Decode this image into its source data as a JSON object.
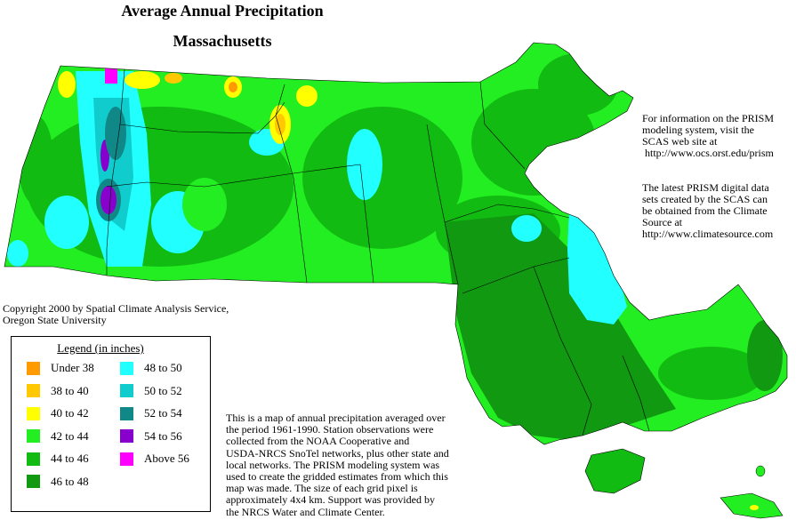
{
  "title": "Average Annual Precipitation",
  "subtitle": "Massachusetts",
  "copyright": [
    "Copyright 2000 by Spatial Climate Analysis Service,",
    "Oregon State University"
  ],
  "info_prism": [
    "For information on the PRISM",
    "modeling system, visit the",
    "SCAS web site at",
    " http://www.ocs.orst.edu/prism"
  ],
  "info_data": [
    "The latest PRISM digital data",
    "sets created by the SCAS can",
    "be obtained from the Climate",
    "Source at",
    "http://www.climatesource.com"
  ],
  "legend": {
    "title": "Legend (in inches)",
    "items": [
      {
        "label": "Under 38",
        "color": "#ff9a00"
      },
      {
        "label": "38 to 40",
        "color": "#ffc800"
      },
      {
        "label": "40 to 42",
        "color": "#ffff00"
      },
      {
        "label": "42 to 44",
        "color": "#22ee22"
      },
      {
        "label": "44 to 46",
        "color": "#11bb11"
      },
      {
        "label": "46 to 48",
        "color": "#119911"
      },
      {
        "label": "48 to 50",
        "color": "#22ffff"
      },
      {
        "label": "50 to 52",
        "color": "#11cccc"
      },
      {
        "label": "52 to 54",
        "color": "#118888"
      },
      {
        "label": "54 to 56",
        "color": "#8800cc"
      },
      {
        "label": "Above 56",
        "color": "#ff00ff"
      }
    ]
  },
  "description": [
    "This is a map of annual precipitation averaged over",
    "the period 1961-1990. Station observations were",
    "collected from the NOAA Cooperative and",
    "USDA-NRCS SnoTel networks, plus other state and",
    "local networks.  The PRISM modeling system was",
    "used to create the gridded estimates from which this",
    "map was made.  The size of each grid pixel is",
    "approximately 4x4 km.  Support was provided by",
    "the NRCS Water and Climate Center."
  ]
}
